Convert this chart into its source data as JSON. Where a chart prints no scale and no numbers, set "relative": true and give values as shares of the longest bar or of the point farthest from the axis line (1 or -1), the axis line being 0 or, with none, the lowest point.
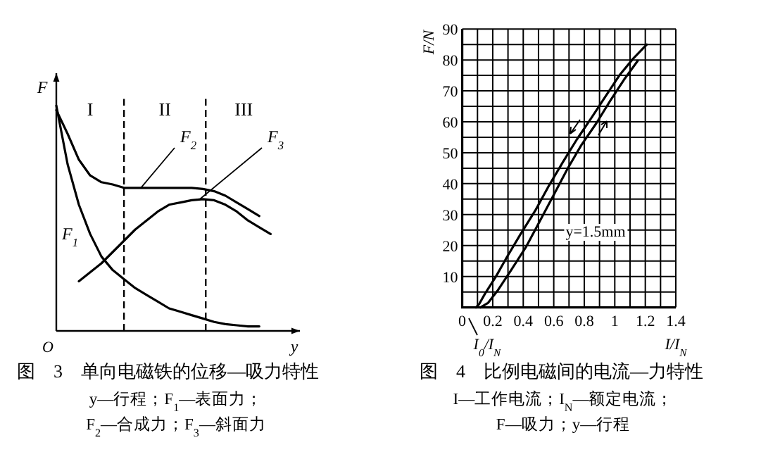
{
  "chart_data": [
    {
      "type": "line",
      "relative": true,
      "title": "图　3　单向电磁铁的位移—吸力特性",
      "xlabel": "y",
      "ylabel": "F",
      "categories": [
        null,
        null,
        null,
        null,
        null,
        null,
        null,
        null,
        null,
        null,
        null,
        null,
        null,
        null,
        null,
        null,
        null,
        null,
        null,
        null
      ],
      "series": [
        {
          "name": "F$_{1}$",
          "color": "#000000",
          "values": [
            1.0,
            0.74,
            0.56,
            0.43,
            0.33,
            0.27,
            0.23,
            0.19,
            0.16,
            0.13,
            0.1,
            0.085,
            0.07,
            0.055,
            0.04,
            0.03,
            0.025,
            0.02,
            0.02,
            null
          ]
        },
        {
          "name": "F$_{2}$",
          "color": "#000000",
          "values": [
            0.98,
            0.875,
            0.76,
            0.69,
            0.66,
            0.65,
            0.635,
            0.635,
            0.635,
            0.635,
            0.635,
            0.635,
            0.635,
            0.63,
            0.62,
            0.6,
            0.57,
            0.54,
            0.51,
            null
          ]
        },
        {
          "name": "F$_{3}$",
          "color": "#000000",
          "values": [
            null,
            null,
            0.22,
            0.26,
            0.3,
            0.35,
            0.4,
            0.45,
            0.49,
            0.53,
            0.56,
            0.57,
            0.58,
            0.585,
            0.58,
            0.56,
            0.53,
            0.49,
            0.46,
            0.43
          ]
        }
      ],
      "annotations": [
        "I",
        "II",
        "III",
        "O",
        "y—行程；F$_{1}$—表面力；",
        "F$_{2}$—合成力；F$_{3}$—斜面力"
      ]
    },
    {
      "type": "line",
      "title": "图　4　比例电磁间的电流—力特性",
      "xlabel": "I/I$_{N}$",
      "ylabel": "F/N",
      "xlim": [
        0,
        1.4
      ],
      "ylim": [
        0,
        90
      ],
      "xticks": [
        0,
        {
          "value": 0.1,
          "label": null
        },
        0.2,
        {
          "value": 0.3,
          "label": null
        },
        0.4,
        {
          "value": 0.5,
          "label": null
        },
        0.6,
        {
          "value": 0.7,
          "label": null
        },
        0.8,
        {
          "value": 0.9,
          "label": null
        },
        1,
        {
          "value": 1.1,
          "label": null
        },
        1.2,
        {
          "value": 1.3,
          "label": null
        },
        1.4
      ],
      "yticks": [
        {
          "value": 0,
          "label": null
        },
        {
          "value": 5,
          "label": null
        },
        10,
        {
          "value": 15,
          "label": null
        },
        20,
        {
          "value": 25,
          "label": null
        },
        30,
        {
          "value": 35,
          "label": null
        },
        40,
        {
          "value": 45,
          "label": null
        },
        50,
        {
          "value": 55,
          "label": null
        },
        60,
        {
          "value": 65,
          "label": null
        },
        70,
        {
          "value": 75,
          "label": null
        },
        80,
        {
          "value": 85,
          "label": null
        },
        90
      ],
      "grid": true,
      "series": [
        {
          "color": "#000000",
          "x": [
            0.09,
            0.11,
            0.15,
            0.22,
            0.29,
            0.38,
            0.48,
            0.57,
            0.66,
            0.75,
            0.85,
            0.94,
            1.03,
            1.12,
            1.21
          ],
          "values": [
            0,
            1,
            4.5,
            9.9,
            16,
            23.5,
            31.4,
            39.5,
            47,
            54.2,
            61.5,
            68.3,
            75,
            80.4,
            85
          ]
        },
        {
          "color": "#000000",
          "x": [
            0.12,
            0.17,
            0.23,
            0.32,
            0.42,
            0.51,
            0.6,
            0.69,
            0.78,
            0.88,
            0.97,
            1.06,
            1.15
          ],
          "values": [
            0,
            1.5,
            5.3,
            12,
            19.7,
            28,
            36.4,
            44.8,
            52.4,
            59.6,
            66.8,
            73.6,
            79.7
          ]
        }
      ],
      "annotations": [
        "y=1.5mm",
        "I$_{0}$/I$_{N}$",
        "I—工作电流；I$_{N}$—额定电流；",
        "F—吸力；y—行程"
      ]
    }
  ]
}
